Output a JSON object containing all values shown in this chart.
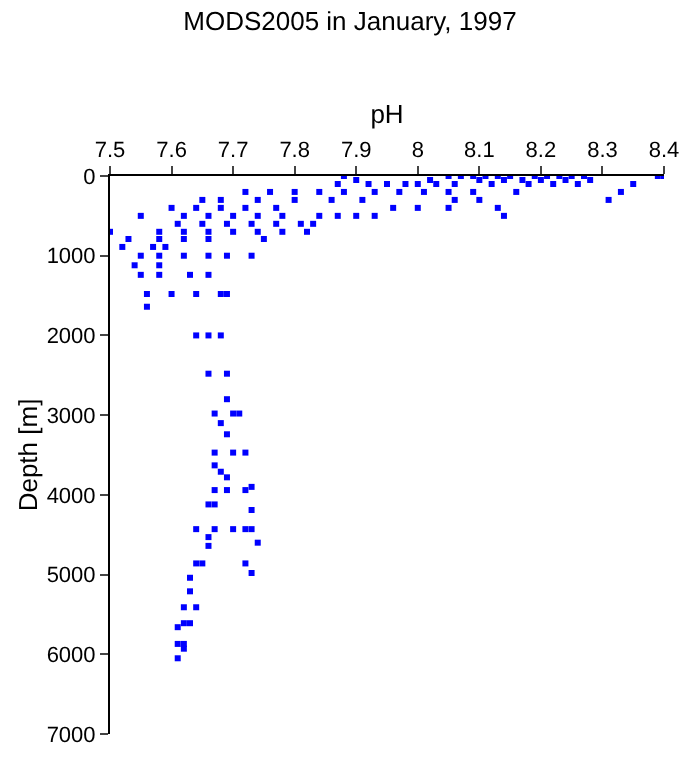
{
  "chart_data": {
    "type": "scatter",
    "title": "MODS2005 in January, 1997",
    "xlabel": "pH",
    "ylabel": "Depth [m]",
    "xlim": [
      7.5,
      8.4
    ],
    "xticks": [
      7.5,
      7.6,
      7.7,
      7.8,
      7.9,
      8,
      8.1,
      8.2,
      8.3,
      8.4
    ],
    "ylim": [
      7000,
      0
    ],
    "yticks": [
      0,
      1000,
      2000,
      3000,
      4000,
      5000,
      6000,
      7000
    ],
    "grid": false,
    "legend": false,
    "marker": "square",
    "series": [
      {
        "color": "#0000ff",
        "x": [
          7.88,
          8.05,
          8.07,
          8.09,
          8.11,
          8.13,
          8.15,
          8.19,
          8.21,
          8.23,
          8.25,
          8.27,
          8.39,
          8.4,
          8.1,
          8.14,
          8.17,
          8.2,
          8.24,
          8.28,
          8.02,
          7.9,
          7.87,
          7.92,
          7.95,
          7.98,
          8,
          8.03,
          8.06,
          8.12,
          8.18,
          8.22,
          8.26,
          8.35,
          7.72,
          7.76,
          7.8,
          7.84,
          7.88,
          7.93,
          7.97,
          8.01,
          8.05,
          8.09,
          8.16,
          8.33,
          7.65,
          7.68,
          7.74,
          7.8,
          7.86,
          7.91,
          8.06,
          8.1,
          8.31,
          7.6,
          7.64,
          7.68,
          7.72,
          7.77,
          7.96,
          8,
          8.05,
          8.13,
          7.55,
          7.62,
          7.66,
          7.7,
          7.74,
          7.78,
          7.84,
          7.87,
          7.9,
          7.93,
          8.14,
          7.61,
          7.65,
          7.69,
          7.73,
          7.77,
          7.81,
          7.83,
          7.5,
          7.58,
          7.62,
          7.66,
          7.7,
          7.74,
          7.78,
          7.82,
          7.53,
          7.58,
          7.62,
          7.66,
          7.75,
          7.52,
          7.57,
          7.59,
          7.55,
          7.58,
          7.62,
          7.66,
          7.69,
          7.73,
          7.54,
          7.58,
          7.55,
          7.58,
          7.63,
          7.66,
          7.56,
          7.6,
          7.64,
          7.68,
          7.69,
          7.56,
          7.64,
          7.66,
          7.68,
          7.66,
          7.69,
          7.69,
          7.67,
          7.7,
          7.71,
          7.68,
          7.69,
          7.67,
          7.7,
          7.72,
          7.67,
          7.68,
          7.69,
          7.73,
          7.67,
          7.69,
          7.72,
          7.66,
          7.67,
          7.73,
          7.64,
          7.67,
          7.7,
          7.72,
          7.73,
          7.66,
          7.74,
          7.66,
          7.64,
          7.65,
          7.72,
          7.73,
          7.63,
          7.63,
          7.62,
          7.64,
          7.62,
          7.63,
          7.61,
          7.61,
          7.62,
          7.62,
          7.61
        ],
        "values": [
          0,
          0,
          0,
          0,
          0,
          0,
          0,
          0,
          0,
          0,
          0,
          0,
          0,
          0,
          50,
          50,
          50,
          50,
          50,
          50,
          50,
          50,
          100,
          100,
          100,
          100,
          100,
          100,
          100,
          100,
          100,
          100,
          100,
          100,
          200,
          200,
          200,
          200,
          200,
          200,
          200,
          200,
          200,
          200,
          200,
          200,
          300,
          300,
          300,
          300,
          300,
          300,
          300,
          300,
          300,
          400,
          400,
          400,
          400,
          400,
          400,
          400,
          400,
          400,
          500,
          500,
          500,
          500,
          500,
          500,
          500,
          500,
          500,
          500,
          500,
          600,
          600,
          600,
          600,
          600,
          600,
          600,
          700,
          700,
          700,
          700,
          700,
          700,
          700,
          700,
          790,
          790,
          790,
          790,
          790,
          890,
          890,
          890,
          1000,
          1000,
          1000,
          1000,
          1000,
          1000,
          1120,
          1120,
          1240,
          1240,
          1240,
          1240,
          1480,
          1480,
          1480,
          1480,
          1480,
          1640,
          2000,
          2000,
          2000,
          2480,
          2480,
          2800,
          2980,
          2980,
          2980,
          3100,
          3240,
          3470,
          3470,
          3470,
          3630,
          3710,
          3780,
          3900,
          3940,
          3940,
          3940,
          4120,
          4120,
          4190,
          4430,
          4430,
          4430,
          4430,
          4430,
          4530,
          4600,
          4640,
          4860,
          4860,
          4860,
          4980,
          5040,
          5210,
          5410,
          5410,
          5610,
          5610,
          5660,
          5870,
          5870,
          5930,
          6050
        ]
      }
    ]
  }
}
